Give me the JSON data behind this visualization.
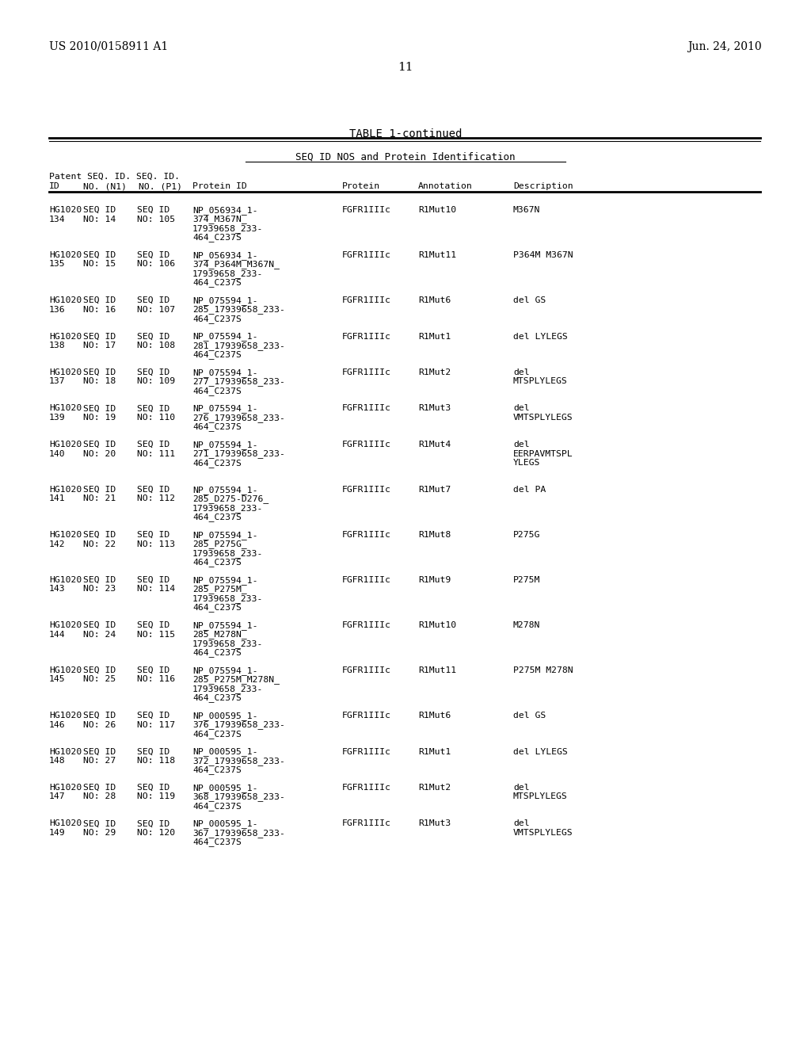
{
  "patent_id": "US 2010/0158911 A1",
  "date": "Jun. 24, 2010",
  "page_num": "11",
  "table_title": "TABLE 1-continued",
  "table_subtitle": "SEQ ID NOS and Protein Identification",
  "bg_color": "#ffffff",
  "font_color": "#000000",
  "col_x": {
    "patent_id_col": 62,
    "seq_n1": 105,
    "seq_p1": 160,
    "protein_id": 220,
    "protein": 430,
    "annotation": 530,
    "description": 650
  },
  "rows": [
    {
      "id": "HG1020",
      "id2": "134",
      "seq_n1": "SEQ ID\nNO: 14",
      "seq_p1": "SEQ ID\nNO: 105",
      "prot_id": "NP_056934_1-\n374_M367N_\n17939658_233-\n464_C237S",
      "protein": "FGFR1IIIc",
      "annot": "R1Mut10",
      "desc": "M367N"
    },
    {
      "id": "HG1020",
      "id2": "135",
      "seq_n1": "SEQ ID\nNO: 15",
      "seq_p1": "SEQ ID\nNO: 106",
      "prot_id": "NP_056934_1-\n374_P364M_M367N_\n17939658_233-\n464_C237S",
      "protein": "FGFR1IIIc",
      "annot": "R1Mut11",
      "desc": "P364M M367N"
    },
    {
      "id": "HG1020",
      "id2": "136",
      "seq_n1": "SEQ ID\nNO: 16",
      "seq_p1": "SEQ ID\nNO: 107",
      "prot_id": "NP_075594_1-\n285_17939658_233-\n464_C237S",
      "protein": "FGFR1IIIc",
      "annot": "R1Mut6",
      "desc": "del GS"
    },
    {
      "id": "HG1020",
      "id2": "138",
      "seq_n1": "SEQ ID\nNO: 17",
      "seq_p1": "SEQ ID\nNO: 108",
      "prot_id": "NP_075594_1-\n281_17939658_233-\n464_C237S",
      "protein": "FGFR1IIIc",
      "annot": "R1Mut1",
      "desc": "del LYLEGS"
    },
    {
      "id": "HG1020",
      "id2": "137",
      "seq_n1": "SEQ ID\nNO: 18",
      "seq_p1": "SEQ ID\nNO: 109",
      "prot_id": "NP_075594_1-\n277_17939658_233-\n464_C237S",
      "protein": "FGFR1IIIc",
      "annot": "R1Mut2",
      "desc": "del\nMTSPLYLEGS"
    },
    {
      "id": "HG1020",
      "id2": "139",
      "seq_n1": "SEQ ID\nNO: 19",
      "seq_p1": "SEQ ID\nNO: 110",
      "prot_id": "NP_075594_1-\n276_17939658_233-\n464_C237S",
      "protein": "FGFR1IIIc",
      "annot": "R1Mut3",
      "desc": "del\nVMTSPLYLEGS"
    },
    {
      "id": "HG1020",
      "id2": "140",
      "seq_n1": "SEQ ID\nNO: 20",
      "seq_p1": "SEQ ID\nNO: 111",
      "prot_id": "NP_075594_1-\n271_17939658_233-\n464_C237S",
      "protein": "FGFR1IIIc",
      "annot": "R1Mut4",
      "desc": "del\nEERPAVMTSPL\nYLEGS"
    },
    {
      "id": "HG1020",
      "id2": "141",
      "seq_n1": "SEQ ID\nNO: 21",
      "seq_p1": "SEQ ID\nNO: 112",
      "prot_id": "NP_075594_1-\n285_D275-D276_\n17939658_233-\n464_C237S",
      "protein": "FGFR1IIIc",
      "annot": "R1Mut7",
      "desc": "del PA"
    },
    {
      "id": "HG1020",
      "id2": "142",
      "seq_n1": "SEQ ID\nNO: 22",
      "seq_p1": "SEQ ID\nNO: 113",
      "prot_id": "NP_075594_1-\n285_P275G_\n17939658_233-\n464_C237S",
      "protein": "FGFR1IIIc",
      "annot": "R1Mut8",
      "desc": "P275G"
    },
    {
      "id": "HG1020",
      "id2": "143",
      "seq_n1": "SEQ ID\nNO: 23",
      "seq_p1": "SEQ ID\nNO: 114",
      "prot_id": "NP_075594_1-\n285_P275M_\n17939658_233-\n464_C237S",
      "protein": "FGFR1IIIc",
      "annot": "R1Mut9",
      "desc": "P275M"
    },
    {
      "id": "HG1020",
      "id2": "144",
      "seq_n1": "SEQ ID\nNO: 24",
      "seq_p1": "SEQ ID\nNO: 115",
      "prot_id": "NP_075594_1-\n285_M278N_\n17939658_233-\n464_C237S",
      "protein": "FGFR1IIIc",
      "annot": "R1Mut10",
      "desc": "M278N"
    },
    {
      "id": "HG1020",
      "id2": "145",
      "seq_n1": "SEQ ID\nNO: 25",
      "seq_p1": "SEQ ID\nNO: 116",
      "prot_id": "NP_075594_1-\n285_P275M_M278N_\n17939658_233-\n464_C237S",
      "protein": "FGFR1IIIc",
      "annot": "R1Mut11",
      "desc": "P275M M278N"
    },
    {
      "id": "HG1020",
      "id2": "146",
      "seq_n1": "SEQ ID\nNO: 26",
      "seq_p1": "SEQ ID\nNO: 117",
      "prot_id": "NP_000595_1-\n376_17939658_233-\n464_C237S",
      "protein": "FGFR1IIIc",
      "annot": "R1Mut6",
      "desc": "del GS"
    },
    {
      "id": "HG1020",
      "id2": "148",
      "seq_n1": "SEQ ID\nNO: 27",
      "seq_p1": "SEQ ID\nNO: 118",
      "prot_id": "NP_000595_1-\n372_17939658_233-\n464_C237S",
      "protein": "FGFR1IIIc",
      "annot": "R1Mut1",
      "desc": "del LYLEGS"
    },
    {
      "id": "HG1020",
      "id2": "147",
      "seq_n1": "SEQ ID\nNO: 28",
      "seq_p1": "SEQ ID\nNO: 119",
      "prot_id": "NP_000595_1-\n368_17939658_233-\n464_C237S",
      "protein": "FGFR1IIIc",
      "annot": "R1Mut2",
      "desc": "del\nMTSPLYLEGS"
    },
    {
      "id": "HG1020",
      "id2": "149",
      "seq_n1": "SEQ ID\nNO: 29",
      "seq_p1": "SEQ ID\nNO: 120",
      "prot_id": "NP_000595_1-\n367_17939658_233-\n464_C237S",
      "protein": "FGFR1IIIc",
      "annot": "R1Mut3",
      "desc": "del\nVMTSPLYLEGS"
    }
  ]
}
